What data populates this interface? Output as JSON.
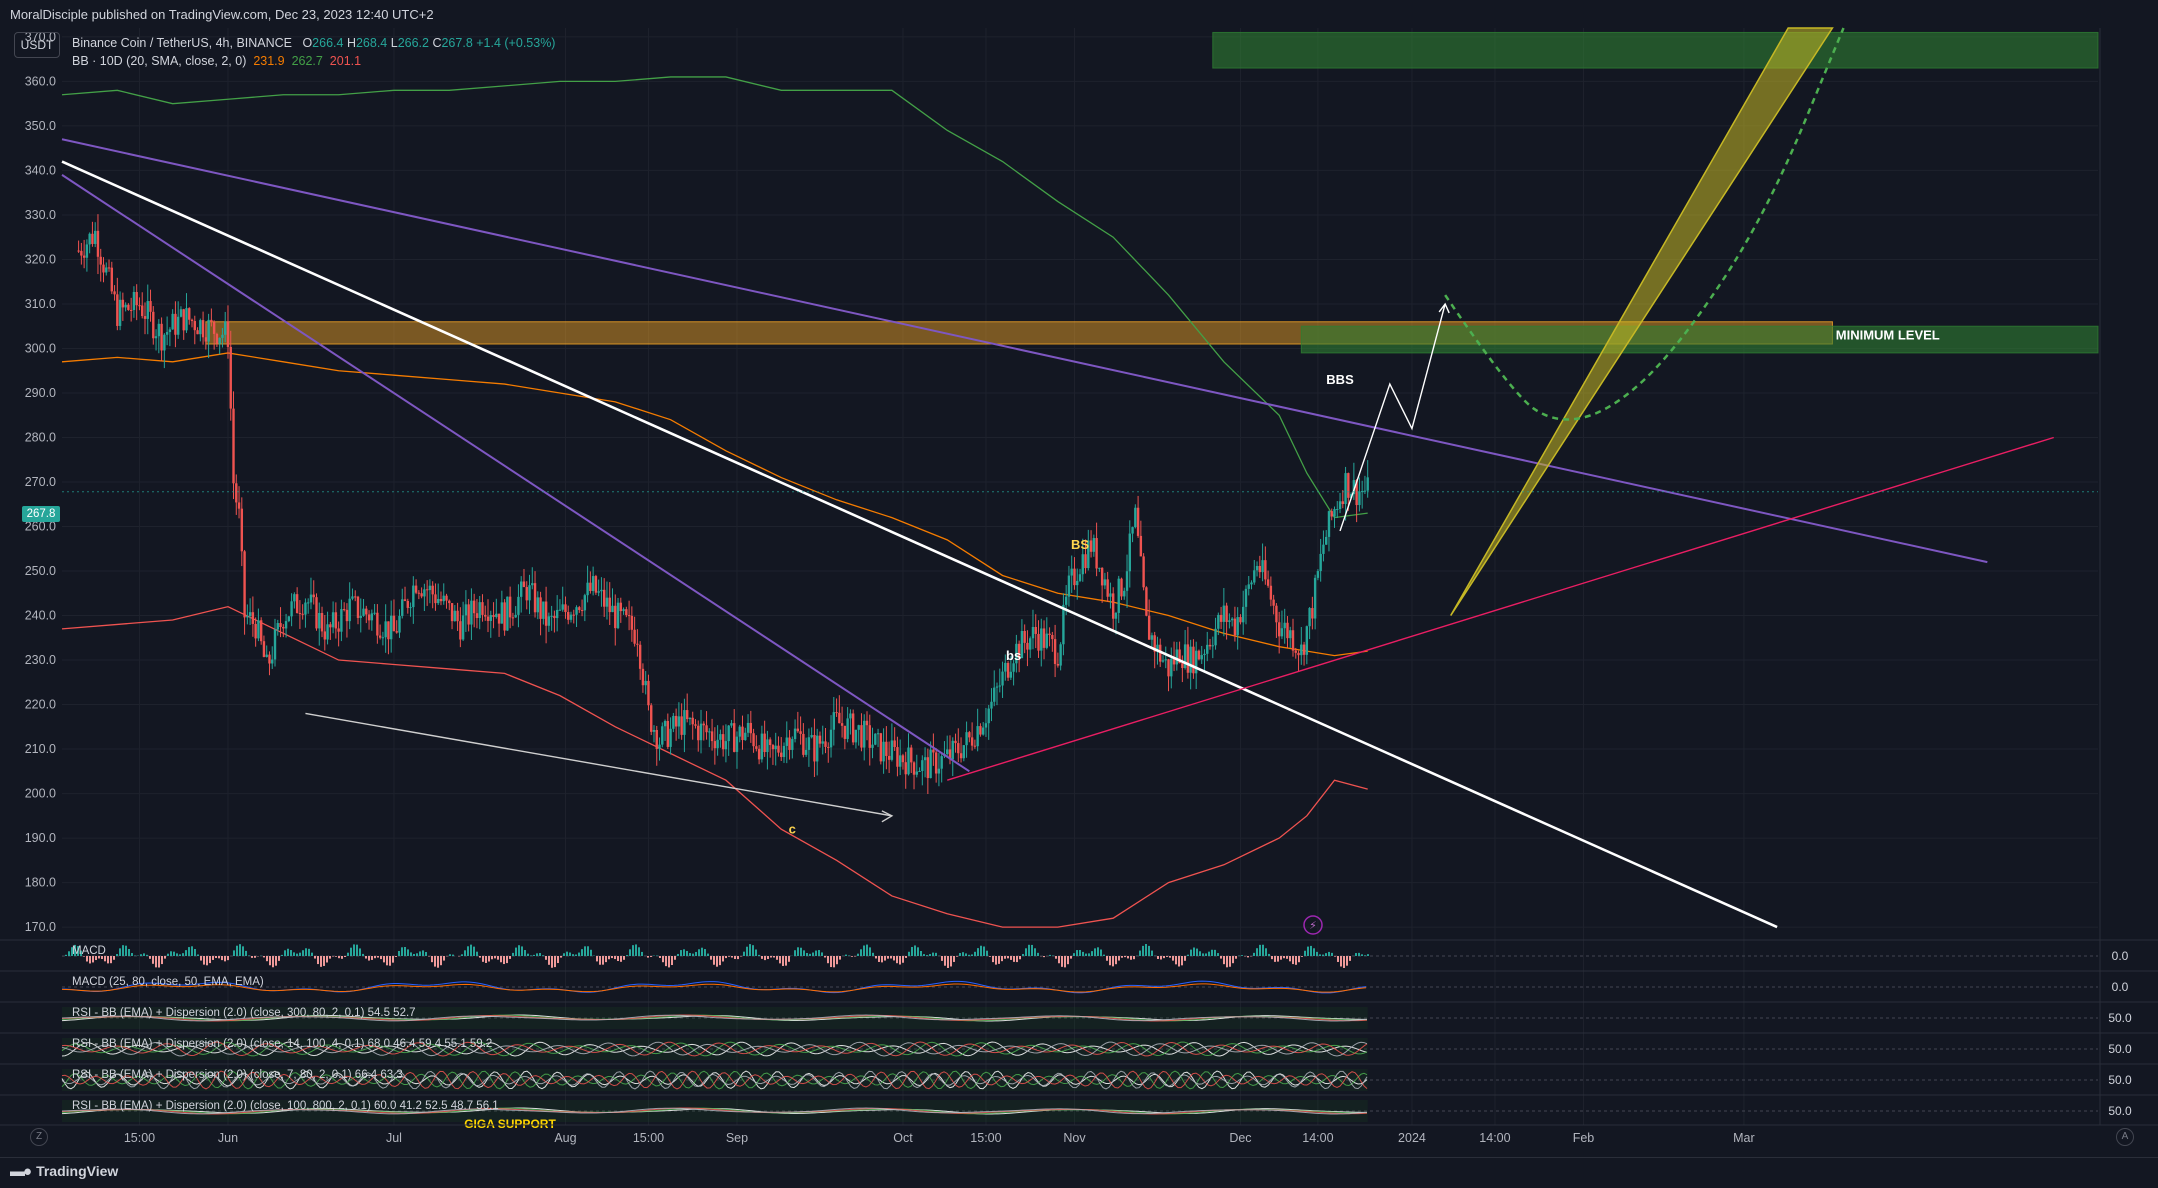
{
  "header": {
    "published_line": "MoralDisciple published on TradingView.com, Dec 23, 2023 12:40 UTC+2"
  },
  "currency_button": "USDT",
  "legend": {
    "symbol": "Binance Coin / TetherUS, 4h, BINANCE",
    "open_label": "O",
    "open": "266.4",
    "high_label": "H",
    "high": "268.4",
    "low_label": "L",
    "low": "266.2",
    "close_label": "C",
    "close": "267.8",
    "change": "+1.4 (+0.53%)",
    "bb_label": "BB · 10D (20, SMA, close, 2, 0)",
    "bb_basis": "231.9",
    "bb_upper": "262.7",
    "bb_lower": "201.1"
  },
  "last_price_tag": "267.8",
  "footer": {
    "brand": "TradingView",
    "z_button": "Z",
    "a_button": "A"
  },
  "colors": {
    "background": "#131722",
    "grid": "#1e222d",
    "up": "#26a69a",
    "down": "#ef5350",
    "bb_upper": "#43a047",
    "bb_basis": "#f57c00",
    "bb_lower": "#ef5350",
    "zone_green": "#2e7d32",
    "zone_orange": "#f9a825",
    "trend_purple": "#7e57c2",
    "trend_white": "#ffffff",
    "trend_pink": "#e91e63",
    "channel_yellow": "#c6b825"
  },
  "chart_data": {
    "type": "candlestick",
    "price_axis": {
      "labels": [
        "370.0",
        "360.0",
        "350.0",
        "340.0",
        "330.0",
        "320.0",
        "310.0",
        "300.0",
        "290.0",
        "280.0",
        "270.0",
        "260.0",
        "250.0",
        "240.0",
        "230.0",
        "220.0",
        "210.0",
        "200.0",
        "190.0",
        "180.0",
        "170.0"
      ],
      "ylim": [
        168,
        372
      ]
    },
    "time_axis": {
      "labels": [
        "15:00",
        "Jun",
        "Jul",
        "Aug",
        "15:00",
        "Sep",
        "Oct",
        "15:00",
        "Nov",
        "Dec",
        "14:00",
        "2024",
        "14:00",
        "Feb",
        "Mar"
      ],
      "positions_days": [
        -16,
        0,
        30,
        61,
        76,
        92,
        122,
        137,
        153,
        183,
        197,
        214,
        229,
        245,
        274
      ],
      "xlim_days": [
        -30,
        338
      ],
      "note_positions": "days since Jun 1, 2023"
    },
    "price_path": {
      "x_days": [
        -27,
        -24,
        -20,
        -16,
        -12,
        -8,
        -4,
        0,
        1,
        2,
        3,
        5,
        7,
        10,
        14,
        18,
        22,
        26,
        30,
        34,
        38,
        42,
        46,
        50,
        54,
        58,
        62,
        66,
        70,
        74,
        76,
        78,
        82,
        86,
        90,
        94,
        98,
        102,
        106,
        110,
        114,
        118,
        122,
        126,
        130,
        134,
        138,
        142,
        146,
        150,
        152,
        154,
        156,
        158,
        160,
        162,
        164,
        166,
        168,
        170,
        172,
        174,
        176,
        178,
        180,
        182,
        184,
        186,
        188,
        190,
        192,
        194,
        196,
        198,
        200,
        202,
        204,
        206
      ],
      "close": [
        322,
        326,
        308,
        310,
        303,
        307,
        305,
        303,
        270,
        262,
        240,
        238,
        228,
        240,
        244,
        236,
        242,
        240,
        236,
        248,
        244,
        238,
        243,
        240,
        246,
        238,
        242,
        246,
        240,
        236,
        218,
        212,
        216,
        214,
        212,
        214,
        208,
        214,
        210,
        216,
        214,
        210,
        208,
        206,
        208,
        212,
        220,
        232,
        236,
        232,
        246,
        252,
        256,
        250,
        242,
        248,
        262,
        238,
        232,
        228,
        232,
        230,
        232,
        236,
        240,
        238,
        244,
        252,
        246,
        238,
        236,
        232,
        242,
        256,
        264,
        270,
        268,
        268
      ]
    },
    "bollinger_10D": {
      "x_days": [
        -30,
        -20,
        -10,
        0,
        10,
        20,
        30,
        40,
        50,
        60,
        70,
        80,
        90,
        100,
        110,
        120,
        130,
        140,
        150,
        160,
        170,
        180,
        190,
        195,
        200,
        206
      ],
      "upper": [
        357,
        358,
        355,
        356,
        357,
        357,
        358,
        358,
        359,
        360,
        360,
        361,
        361,
        358,
        358,
        358,
        349,
        342,
        333,
        325,
        312,
        297,
        285,
        272,
        262,
        263
      ],
      "basis": [
        297,
        298,
        297,
        299,
        297,
        295,
        294,
        293,
        292,
        290,
        288,
        284,
        277,
        271,
        266,
        262,
        257,
        249,
        245,
        243,
        240,
        236,
        233,
        232,
        231,
        232
      ],
      "lower": [
        237,
        238,
        239,
        242,
        236,
        230,
        229,
        228,
        227,
        222,
        215,
        209,
        203,
        192,
        185,
        177,
        173,
        170,
        170,
        172,
        180,
        184,
        190,
        195,
        203,
        201
      ]
    },
    "zones": [
      {
        "name": "Orange resistance",
        "y_low": 301,
        "y_high": 306,
        "x_from_days": -4,
        "x_to_days": 290
      },
      {
        "name": "Minimum level zone",
        "label": "MINIMUM LEVEL",
        "y_low": 299,
        "y_high": 305,
        "x_from_days": 194,
        "x_to_days": 338
      },
      {
        "name": "Top target zone",
        "y_low": 363,
        "y_high": 371,
        "x_from_days": 178,
        "x_to_days": 338
      }
    ],
    "trendlines": [
      {
        "name": "purple upper",
        "from": [
          -30,
          347
        ],
        "to": [
          318,
          252
        ]
      },
      {
        "name": "purple lower",
        "from": [
          -30,
          339
        ],
        "to": [
          134,
          205
        ]
      },
      {
        "name": "white falling",
        "from": [
          -30,
          342
        ],
        "to": [
          280,
          170
        ]
      },
      {
        "name": "pink rising",
        "from": [
          130,
          203
        ],
        "to": [
          330,
          280
        ]
      },
      {
        "name": "white lower",
        "from": [
          14,
          218
        ],
        "to": [
          120,
          195
        ]
      }
    ],
    "projection": {
      "name": "BBS path",
      "points": [
        [
          201,
          259
        ],
        [
          210,
          292
        ],
        [
          214,
          282
        ],
        [
          220,
          310
        ]
      ]
    },
    "dashed_curve": {
      "name": "green dashed projection",
      "points": [
        [
          220,
          312
        ],
        [
          232,
          290
        ],
        [
          240,
          283
        ],
        [
          250,
          286
        ],
        [
          262,
          300
        ],
        [
          278,
          330
        ],
        [
          292,
          372
        ]
      ]
    },
    "yellow_channel": {
      "bottom": [
        221,
        240
      ],
      "top_left": [
        282,
        372
      ],
      "top_right": [
        290,
        372
      ]
    },
    "annotations": [
      {
        "text": "BBS",
        "x_days": 201,
        "y": 292,
        "color": "#ffffff"
      },
      {
        "text": "BS",
        "x_days": 154,
        "y": 255,
        "color": "#ffd54f"
      },
      {
        "text": "bs",
        "x_days": 142,
        "y": 230,
        "color": "#ffffff"
      },
      {
        "text": "c",
        "x_days": 102,
        "y": 191,
        "color": "#ffd54f"
      },
      {
        "text": "MINIMUM LEVEL",
        "x_days": 300,
        "y": 302,
        "color": "#ffffff"
      }
    ],
    "indicator_panes": [
      {
        "label": "MACD",
        "value": "0.0"
      },
      {
        "label": "MACD (25, 80, close, 50, EMA, EMA)",
        "value": "0.0"
      },
      {
        "label": "RSI - BB (EMA) + Dispersion (2.0) (close, 300, 80, 2, 0.1)",
        "readings": "54.5 52.7",
        "value": "50.0"
      },
      {
        "label": "RSI - BB (EMA) + Dispersion (2.0) (close, 14, 100, 4, 0.1)",
        "readings": "68.0 46.4 59.4 55.1 59.2",
        "value": "50.0"
      },
      {
        "label": "RSI - BB (EMA) + Dispersion (2.0) (close, 7, 80, 2, 0.1)",
        "readings": "66.4 63.3",
        "value": "50.0"
      },
      {
        "label": "RSI - BB (EMA) + Dispersion (2.0) (close, 100, 800, 2, 0.1)",
        "readings": "60.0 41.2 52.5 48.7 56.1",
        "value": "50.0"
      }
    ],
    "bottom_text": "GIGA SUPPORT"
  }
}
